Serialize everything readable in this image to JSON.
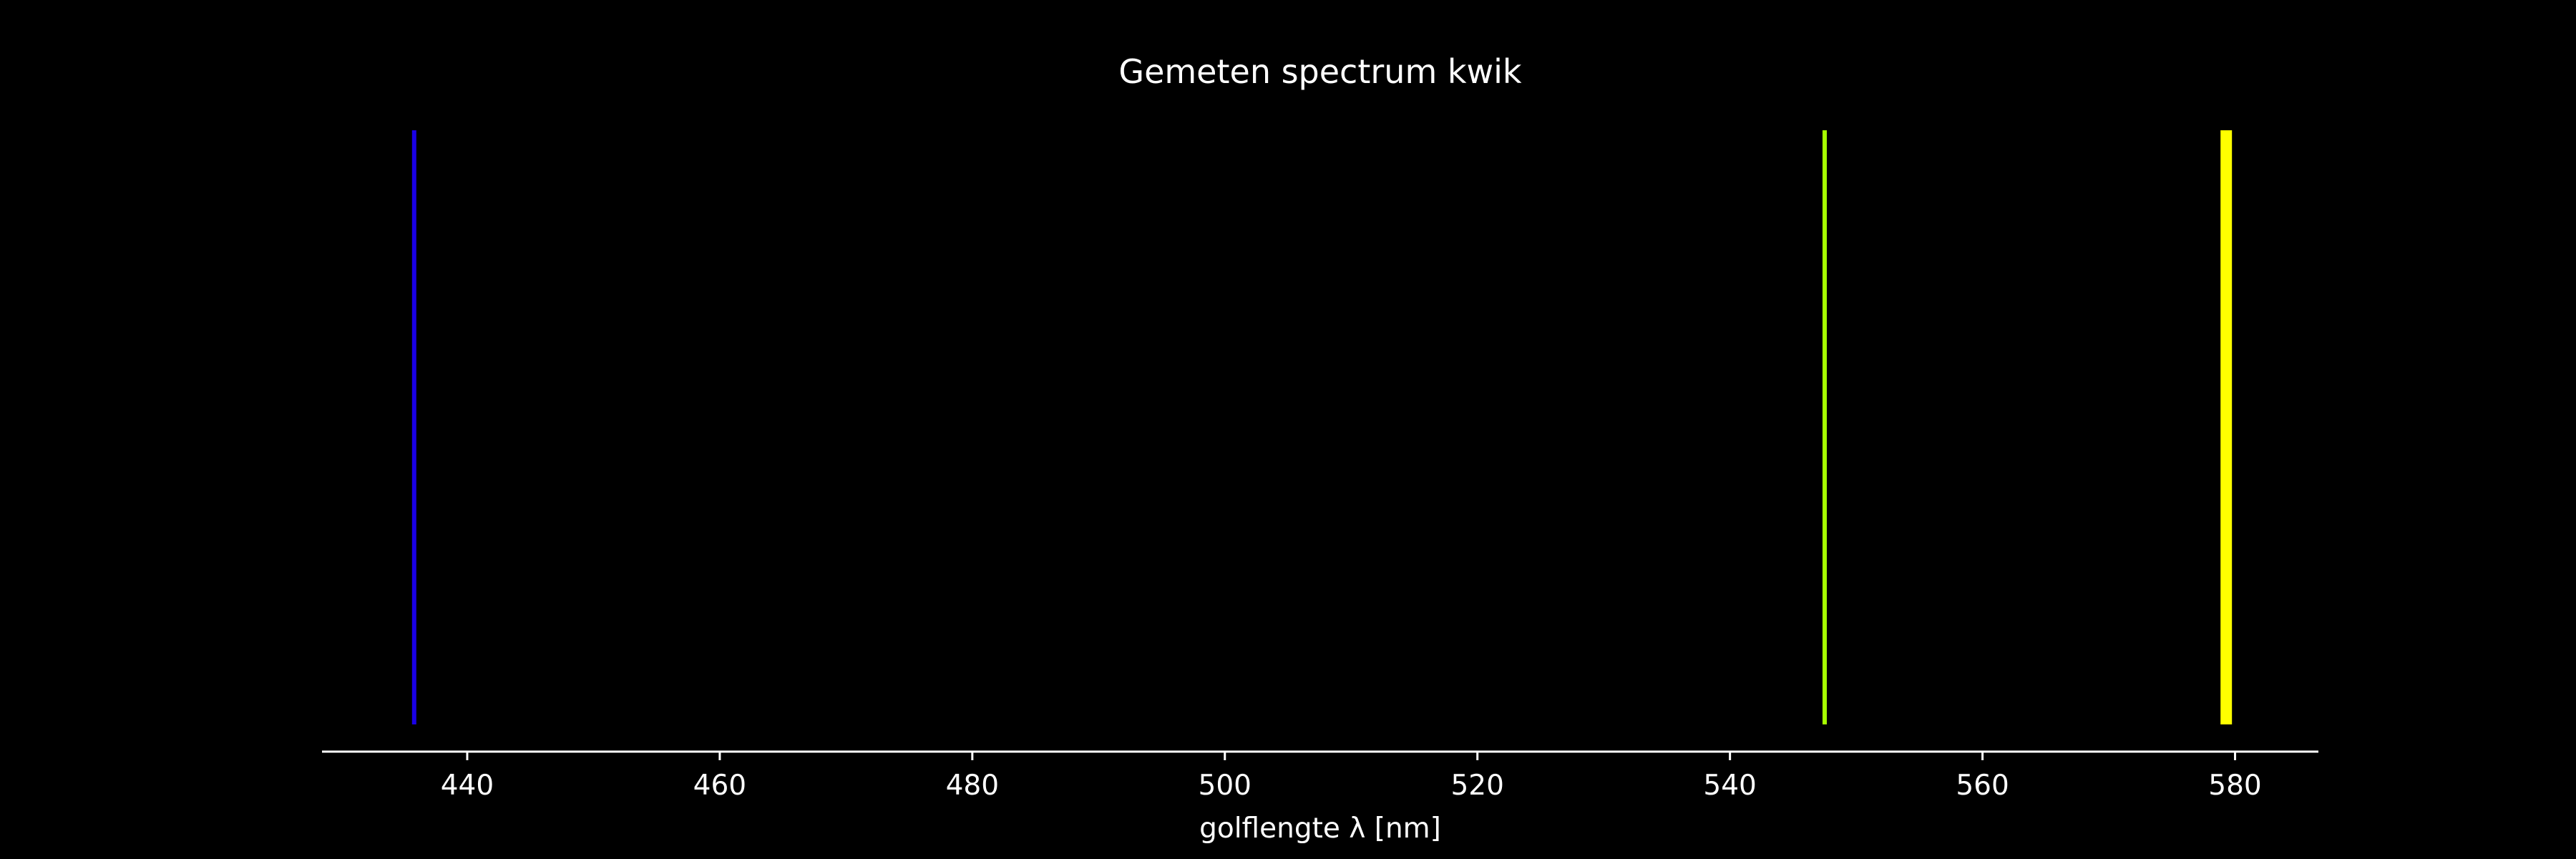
{
  "chart_data": {
    "type": "bar",
    "title": "Gemeten spectrum kwik",
    "xlabel": "golflengte λ [nm]",
    "ylabel": "",
    "xlim": [
      428.5,
      586.6
    ],
    "x_ticks": [
      440,
      460,
      480,
      500,
      520,
      540,
      560,
      580
    ],
    "x_tick_labels": [
      "440",
      "460",
      "480",
      "500",
      "520",
      "540",
      "560",
      "580"
    ],
    "grid": false,
    "legend": "none",
    "background": "#000000",
    "axis_color": "#ffffff",
    "series": [
      {
        "lines": [
          {
            "wavelength": 435.8,
            "color": "#1a00e6",
            "intensity": 1.0
          },
          {
            "wavelength": 547.5,
            "color": "#a6ff00",
            "intensity": 1.0
          },
          {
            "wavelength": 579.3,
            "color": "#ffff00",
            "intensity": 1.0
          }
        ]
      }
    ]
  }
}
